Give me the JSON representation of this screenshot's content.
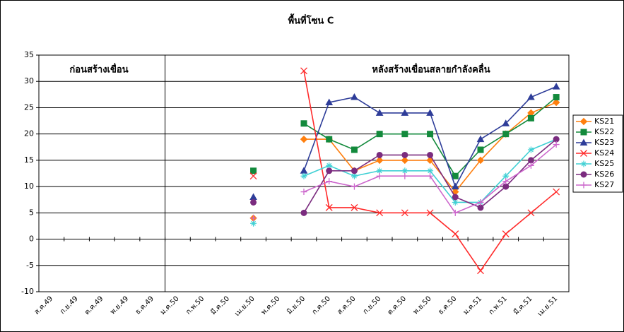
{
  "chart_data": {
    "type": "line",
    "title": "พื้นที่โซน C",
    "annotations": [
      "ก่อนสร้างเขื่อน",
      "หลังสร้างเขื่อนสลายกำลังคลื่น"
    ],
    "categories": [
      "ส.ค.49",
      "ก.ย.49",
      "ต.ค.49",
      "พ.ย.49",
      "ธ.ค.49",
      "ม.ค.50",
      "ก.พ.50",
      "มี.ค.50",
      "เม.ย.50",
      "พ.ค.50",
      "มิ.ย.50",
      "ก.ค.50",
      "ส.ค.50",
      "ก.ย.50",
      "ต.ค.50",
      "พ.ย.50",
      "ธ.ค.50",
      "ม.ค.51",
      "ก.พ.51",
      "มี.ค.51",
      "เม.ย.51"
    ],
    "series": [
      {
        "name": "KS21",
        "color": "#ff7f0e",
        "marker": "diamond",
        "values": [
          null,
          null,
          null,
          null,
          null,
          null,
          null,
          null,
          4,
          null,
          19,
          19,
          13,
          15,
          15,
          15,
          9,
          15,
          20,
          24,
          26
        ]
      },
      {
        "name": "KS22",
        "color": "#138a3c",
        "marker": "square",
        "values": [
          null,
          null,
          null,
          null,
          null,
          null,
          null,
          null,
          13,
          null,
          22,
          19,
          17,
          20,
          20,
          20,
          12,
          17,
          20,
          23,
          27
        ]
      },
      {
        "name": "KS23",
        "color": "#2e3d99",
        "marker": "triangle",
        "values": [
          null,
          null,
          null,
          null,
          null,
          null,
          null,
          null,
          8,
          null,
          13,
          26,
          27,
          24,
          24,
          24,
          10,
          19,
          22,
          27,
          29
        ]
      },
      {
        "name": "KS24",
        "color": "#ff2a2a",
        "marker": "x",
        "values": [
          null,
          null,
          null,
          null,
          null,
          null,
          null,
          null,
          12,
          null,
          32,
          6,
          6,
          5,
          5,
          5,
          1,
          -6,
          1,
          5,
          9
        ]
      },
      {
        "name": "KS25",
        "color": "#3fd0d4",
        "marker": "star",
        "values": [
          null,
          null,
          null,
          null,
          null,
          null,
          null,
          null,
          3,
          null,
          12,
          14,
          12,
          13,
          13,
          13,
          7,
          7,
          12,
          17,
          19
        ]
      },
      {
        "name": "KS26",
        "color": "#7b2c7f",
        "marker": "circle",
        "values": [
          null,
          null,
          null,
          null,
          null,
          null,
          null,
          null,
          7,
          null,
          5,
          13,
          13,
          16,
          16,
          16,
          8,
          6,
          10,
          15,
          19
        ]
      },
      {
        "name": "KS27",
        "color": "#cc66cc",
        "marker": "plus",
        "values": [
          null,
          null,
          null,
          null,
          null,
          null,
          null,
          null,
          4,
          null,
          9,
          11,
          10,
          12,
          12,
          12,
          5,
          7,
          11,
          14,
          18
        ]
      }
    ],
    "ylim": [
      -10,
      35
    ],
    "yticks": [
      -10,
      -5,
      0,
      5,
      10,
      15,
      20,
      25,
      30,
      35
    ],
    "grid": true,
    "legend": "right"
  }
}
